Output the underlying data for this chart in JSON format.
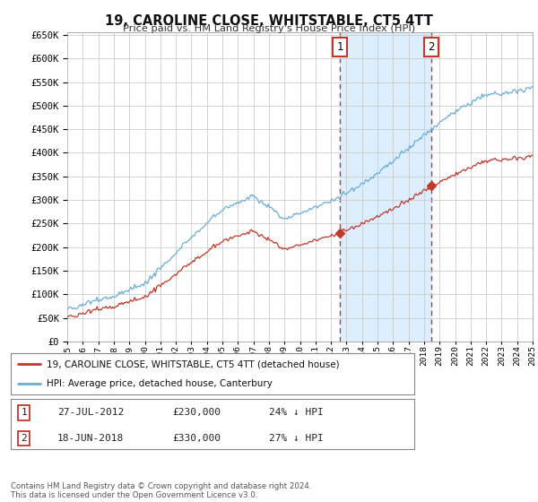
{
  "title": "19, CAROLINE CLOSE, WHITSTABLE, CT5 4TT",
  "subtitle": "Price paid vs. HM Land Registry's House Price Index (HPI)",
  "background_color": "#ffffff",
  "plot_bg_color": "#ffffff",
  "grid_color": "#cccccc",
  "x_start_year": 1995,
  "x_end_year": 2025,
  "y_min": 0,
  "y_max": 650000,
  "y_ticks": [
    0,
    50000,
    100000,
    150000,
    200000,
    250000,
    300000,
    350000,
    400000,
    450000,
    500000,
    550000,
    600000,
    650000
  ],
  "sale1_date": 2012.57,
  "sale1_price": 230000,
  "sale1_label": "1",
  "sale2_date": 2018.46,
  "sale2_price": 330000,
  "sale2_label": "2",
  "hpi_color": "#6baed6",
  "sale_color": "#c0392b",
  "highlight_bg": "#ddeeff",
  "legend_line1": "19, CAROLINE CLOSE, WHITSTABLE, CT5 4TT (detached house)",
  "legend_line2": "HPI: Average price, detached house, Canterbury",
  "sale1_date_str": "27-JUL-2012",
  "sale1_price_str": "£230,000",
  "sale1_pct_str": "24% ↓ HPI",
  "sale2_date_str": "18-JUN-2018",
  "sale2_price_str": "£330,000",
  "sale2_pct_str": "27% ↓ HPI",
  "footer": "Contains HM Land Registry data © Crown copyright and database right 2024.\nThis data is licensed under the Open Government Licence v3.0."
}
